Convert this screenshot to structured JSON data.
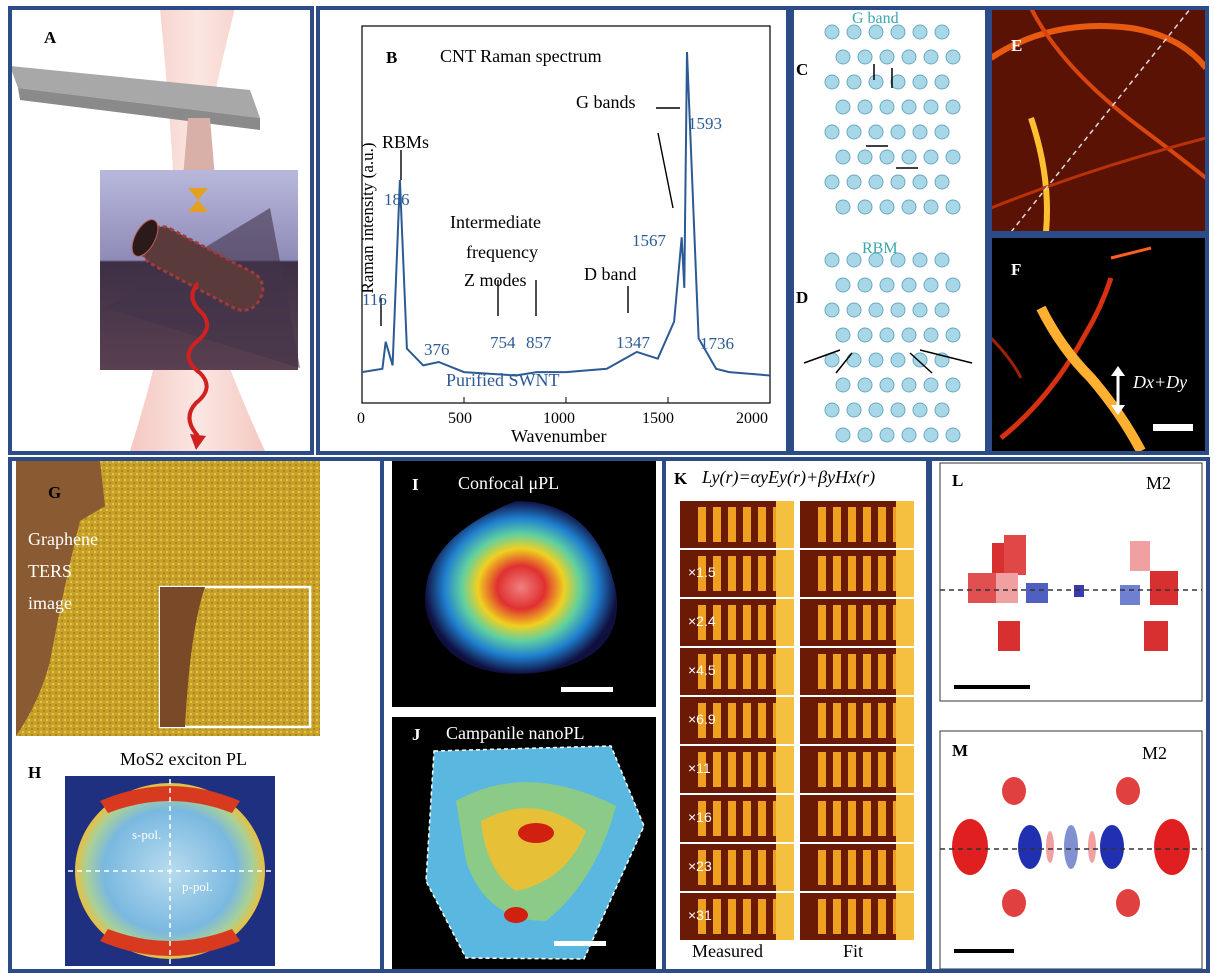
{
  "panel_labels": {
    "A": "A",
    "B": "B",
    "C": "C",
    "D": "D",
    "E": "E",
    "F": "F",
    "G": "G",
    "H": "H",
    "I": "I",
    "J": "J",
    "K": "K",
    "L": "L",
    "M": "M"
  },
  "raman": {
    "title": "CNT Raman spectrum",
    "ylabel": "Raman intensity (a.u.)",
    "xlabel": "Wavenumber",
    "xticks": [
      "0",
      "500",
      "1000",
      "1500",
      "2000"
    ],
    "rbm_label": "RBMs",
    "gbands_label": "G bands",
    "if_line1": "Intermediate",
    "if_line2": "frequency",
    "if_line3": "Z modes",
    "dband_label": "D band",
    "sample_label": "Purified SWNT",
    "peaks": {
      "p116": "116",
      "p186": "186",
      "p376": "376",
      "p754": "754",
      "p857": "857",
      "p1347": "1347",
      "p1567": "1567",
      "p1593": "1593",
      "p1736": "1736"
    }
  },
  "chart_data": {
    "type": "line",
    "title": "CNT Raman spectrum",
    "xlabel": "Wavenumber",
    "ylabel": "Raman intensity (a.u.)",
    "xlim": [
      0,
      2000
    ],
    "series": [
      {
        "name": "Purified SWNT",
        "x": [
          0,
          100,
          116,
          150,
          186,
          220,
          300,
          376,
          500,
          754,
          857,
          1000,
          1200,
          1347,
          1450,
          1530,
          1567,
          1580,
          1593,
          1650,
          1736,
          1800,
          2000
        ],
        "y": [
          0.05,
          0.06,
          0.14,
          0.07,
          0.62,
          0.12,
          0.07,
          0.08,
          0.05,
          0.04,
          0.05,
          0.05,
          0.06,
          0.11,
          0.09,
          0.2,
          0.45,
          0.3,
          1.0,
          0.15,
          0.06,
          0.05,
          0.04
        ]
      }
    ]
  },
  "c_label": "G band",
  "d_label": "RBM",
  "f_label": "Dx+Dy",
  "g_text1": "Graphene",
  "g_text2": "TERS",
  "g_text3": "image",
  "h_title": "MoS2 exciton PL",
  "h_spol": "s-pol.",
  "h_ppol": "p-pol.",
  "i_title": "Confocal μPL",
  "j_title": "Campanile nanoPL",
  "k_eq": "Ly(r)=αyEy(r)+βyHx(r)",
  "k_factors": [
    "×1.5",
    "×2.4",
    "×4.5",
    "×6.9",
    "×11",
    "×16",
    "×23",
    "×31"
  ],
  "k_measured": "Measured",
  "k_fit": "Fit",
  "m2": "M2",
  "colors": {
    "frame": "#2b4c86",
    "spectrum": "#2b5a94",
    "teal": "#3aa6b0"
  }
}
